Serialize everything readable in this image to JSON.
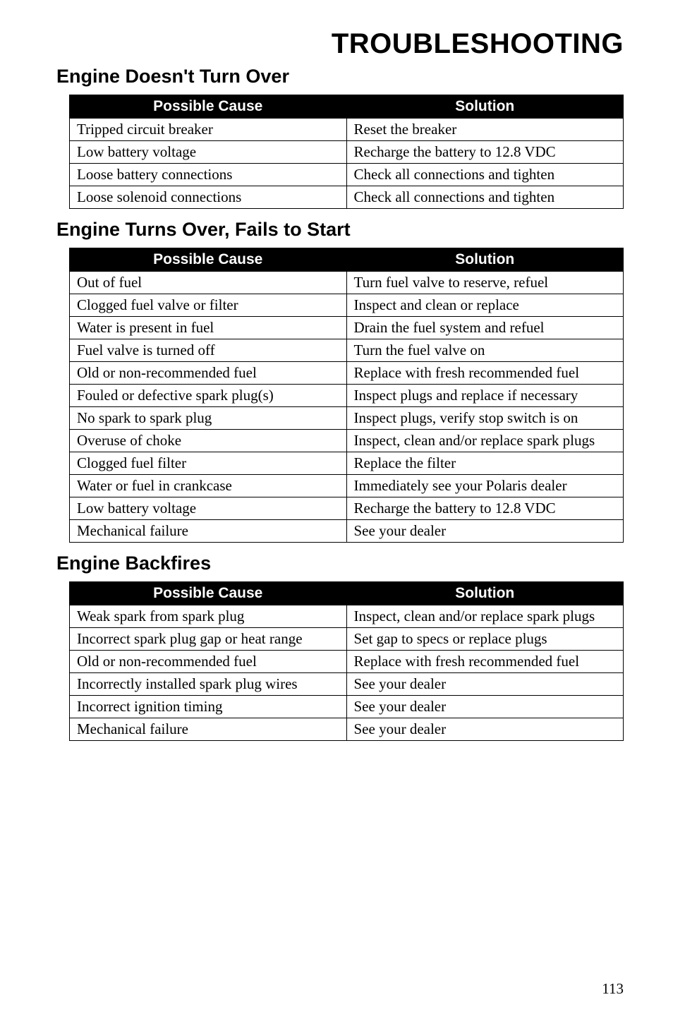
{
  "main_title": "TROUBLESHOOTING",
  "sections": [
    {
      "title": "Engine Doesn't Turn Over",
      "header_cause": "Possible Cause",
      "header_solution": "Solution",
      "rows": [
        {
          "cause": "Tripped circuit breaker",
          "solution": "Reset the breaker"
        },
        {
          "cause": "Low battery voltage",
          "solution": "Recharge the battery to 12.8 VDC"
        },
        {
          "cause": "Loose battery connections",
          "solution": "Check all connections and tighten"
        },
        {
          "cause": "Loose solenoid connections",
          "solution": "Check all connections and tighten"
        }
      ]
    },
    {
      "title": "Engine Turns Over, Fails to Start",
      "header_cause": "Possible Cause",
      "header_solution": "Solution",
      "rows": [
        {
          "cause": "Out of fuel",
          "solution": "Turn fuel valve to reserve, refuel"
        },
        {
          "cause": "Clogged fuel valve or filter",
          "solution": "Inspect and clean or replace"
        },
        {
          "cause": "Water is present in fuel",
          "solution": "Drain the fuel system and refuel"
        },
        {
          "cause": "Fuel valve is turned off",
          "solution": "Turn the fuel valve on"
        },
        {
          "cause": "Old or non-recommended fuel",
          "solution": "Replace with fresh recommended fuel"
        },
        {
          "cause": "Fouled or defective spark plug(s)",
          "solution": "Inspect plugs and replace if necessary"
        },
        {
          "cause": "No spark to spark plug",
          "solution": "Inspect plugs, verify stop switch is on"
        },
        {
          "cause": "Overuse of choke",
          "solution": "Inspect, clean and/or replace spark plugs"
        },
        {
          "cause": "Clogged fuel filter",
          "solution": "Replace the filter"
        },
        {
          "cause": "Water or fuel in crankcase",
          "solution": "Immediately see your Polaris dealer"
        },
        {
          "cause": "Low battery voltage",
          "solution": "Recharge the battery to 12.8 VDC"
        },
        {
          "cause": "Mechanical failure",
          "solution": "See your dealer"
        }
      ]
    },
    {
      "title": "Engine Backfires",
      "header_cause": "Possible Cause",
      "header_solution": "Solution",
      "rows": [
        {
          "cause": "Weak spark from spark plug",
          "solution": "Inspect, clean and/or replace spark plugs"
        },
        {
          "cause": "Incorrect spark plug gap or heat range",
          "solution": "Set gap to specs or replace plugs"
        },
        {
          "cause": "Old or non-recommended fuel",
          "solution": "Replace with fresh recommended fuel"
        },
        {
          "cause": "Incorrectly installed spark plug wires",
          "solution": "See your dealer"
        },
        {
          "cause": "Incorrect ignition timing",
          "solution": "See your dealer"
        },
        {
          "cause": "Mechanical failure",
          "solution": "See your dealer"
        }
      ]
    }
  ],
  "page_number": "113",
  "colors": {
    "header_bg": "#000000",
    "header_fg": "#ffffff",
    "border": "#000000",
    "page_bg": "#ffffff",
    "text": "#000000"
  },
  "fonts": {
    "title_family": "Arial, Helvetica, sans-serif",
    "body_family": "Times New Roman, Times, serif",
    "main_title_size": 40,
    "section_title_size": 27,
    "table_header_size": 21,
    "table_cell_size": 21,
    "page_num_size": 21
  }
}
